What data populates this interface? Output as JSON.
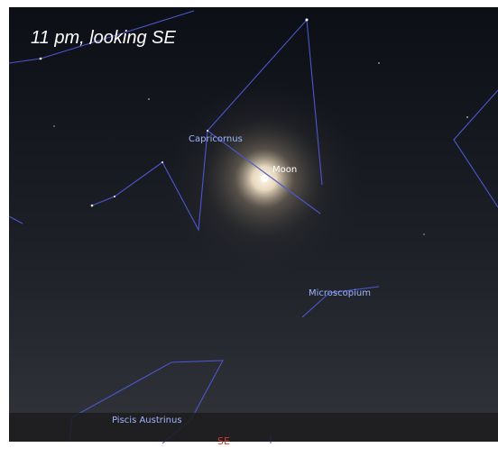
{
  "title": "11 pm, looking SE",
  "labels": {
    "capricornus": "Capricornus",
    "moon": "Moon",
    "microscopium": "Microscopium",
    "piscis_austrinus": "Piscis Austrinus"
  },
  "compass": "SE"
}
